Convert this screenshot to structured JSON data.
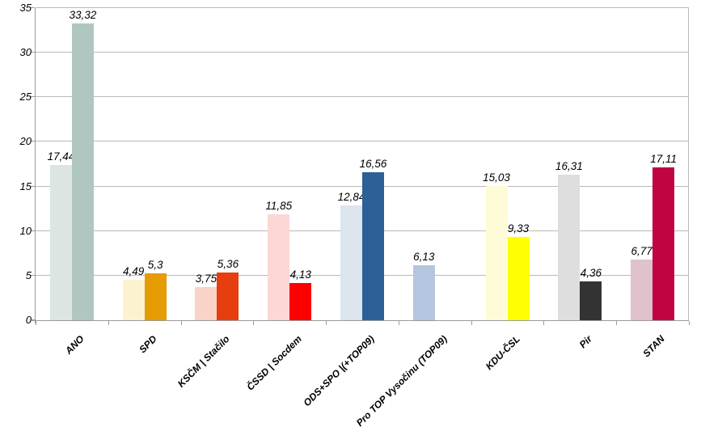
{
  "chart_data": {
    "type": "bar",
    "title": "",
    "xlabel": "",
    "ylabel": "",
    "ylim": [
      0,
      35
    ],
    "yticks": [
      0,
      5,
      10,
      15,
      20,
      25,
      30,
      35
    ],
    "grid": true,
    "legend_position": "none",
    "decimal_separator": ",",
    "categories": [
      "ANO",
      "SPD",
      "KSČM | Stačilo",
      "ČSSD | Socdem",
      "ODS+SPO |(+TOP09)",
      "Pro TOP Vysočinu (TOP09)",
      "KDU-ČSL",
      "Pir",
      "STAN"
    ],
    "series": [
      {
        "name": "series-1-left",
        "values": [
          17.44,
          4.49,
          3.75,
          11.85,
          12.84,
          6.13,
          15.03,
          16.31,
          6.77
        ]
      },
      {
        "name": "series-2-right",
        "values": [
          33.32,
          5.3,
          5.36,
          4.13,
          16.56,
          null,
          9.33,
          4.36,
          17.11
        ]
      }
    ],
    "bar_colors": [
      {
        "left": "#dce5e1",
        "right": "#afc7c0"
      },
      {
        "left": "#fcf2d0",
        "right": "#e59b02"
      },
      {
        "left": "#f9d2c8",
        "right": "#e63e0e"
      },
      {
        "left": "#fdd6d6",
        "right": "#ff0000"
      },
      {
        "left": "#dde5ef",
        "right": "#2d6097"
      },
      {
        "left": "#b4c6df",
        "right": null
      },
      {
        "left": "#fdfcd7",
        "right": "#feff00"
      },
      {
        "left": "#dedede",
        "right": "#333333"
      },
      {
        "left": "#dfc2cd",
        "right": "#c00442"
      }
    ],
    "axis_color": "#9a9a9a",
    "grid_color": "#b9b9b9"
  }
}
